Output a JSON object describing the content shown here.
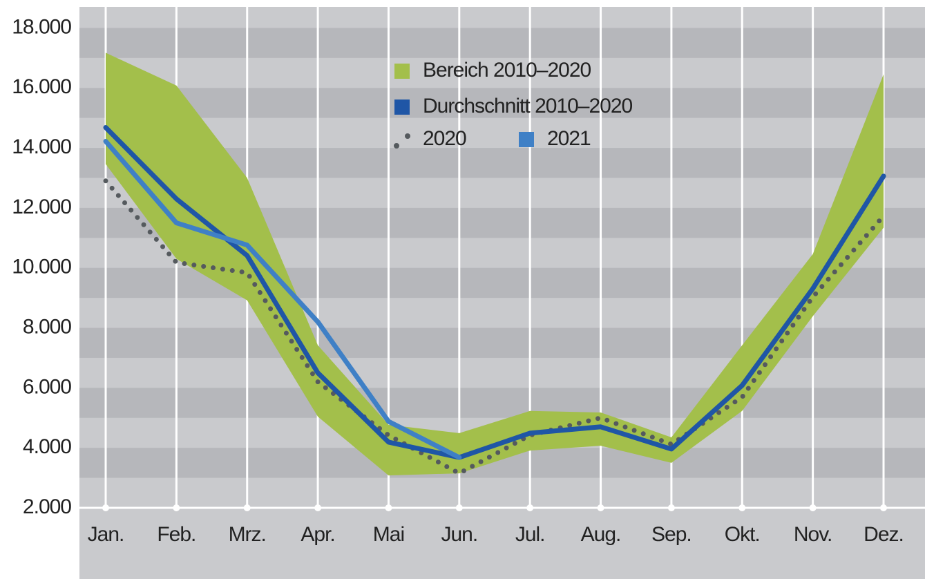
{
  "chart_data": {
    "type": "line",
    "categories": [
      "Jan.",
      "Feb.",
      "Mrz.",
      "Apr.",
      "Mai",
      "Jun.",
      "Jul.",
      "Aug.",
      "Sep.",
      "Okt.",
      "Nov.",
      "Dez."
    ],
    "ylim": [
      2000,
      18700
    ],
    "yticks": [
      {
        "value": 2000,
        "label": "2.000"
      },
      {
        "value": 4000,
        "label": "4.000"
      },
      {
        "value": 6000,
        "label": "6.000"
      },
      {
        "value": 8000,
        "label": "8.000"
      },
      {
        "value": 10000,
        "label": "10.000"
      },
      {
        "value": 12000,
        "label": "12.000"
      },
      {
        "value": 14000,
        "label": "14.000"
      },
      {
        "value": 16000,
        "label": "16.000"
      },
      {
        "value": 18000,
        "label": "18.000"
      }
    ],
    "grid": true,
    "band": {
      "name": "Bereich 2010–2020",
      "color": "#a3bf4b",
      "upper": [
        17170,
        16080,
        13000,
        7420,
        4770,
        4490,
        5230,
        5180,
        4350,
        7420,
        10460,
        16450
      ],
      "lower": [
        13460,
        10300,
        8920,
        5040,
        3080,
        3150,
        3910,
        4070,
        3500,
        5230,
        8390,
        11340
      ]
    },
    "series": [
      {
        "name": "Durchschnitt 2010–2020",
        "color": "#1f56a6",
        "style": "solid",
        "values": [
          14680,
          12300,
          10410,
          6500,
          4190,
          3680,
          4490,
          4700,
          3960,
          6080,
          9310,
          13060
        ]
      },
      {
        "name": "2020",
        "color": "#555a5e",
        "style": "dotted",
        "values": [
          12900,
          10180,
          9840,
          6200,
          4420,
          3150,
          4420,
          5000,
          4120,
          5690,
          9030,
          11730
        ]
      },
      {
        "name": "2021",
        "color": "#3f80c6",
        "style": "solid",
        "values": [
          14220,
          11500,
          10760,
          8200,
          4880,
          3680,
          null,
          null,
          null,
          null,
          null,
          null
        ]
      }
    ]
  }
}
